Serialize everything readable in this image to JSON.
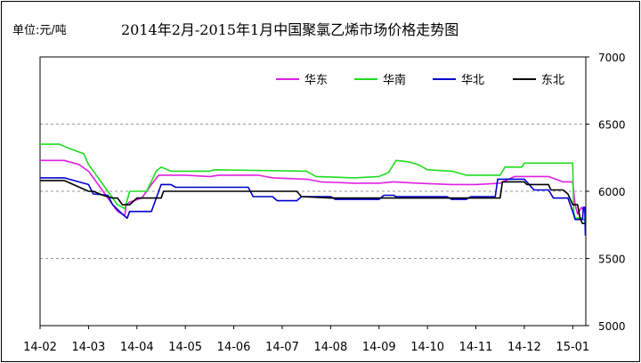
{
  "unit_label": "单位:元/吨",
  "chart_data": {
    "type": "line",
    "title": "2014年2月-2015年1月中国聚氯乙烯市场价格走势图",
    "ylabel_unit": "单位:元/吨",
    "ylim": [
      5000,
      7000
    ],
    "yticks": [
      "7000",
      "6500",
      "6000",
      "5500",
      "5000"
    ],
    "xlim": [
      0,
      11.27
    ],
    "xticks": [
      "14-02",
      "14-03",
      "14-04",
      "14-05",
      "14-06",
      "14-07",
      "14-08",
      "14-09",
      "14-10",
      "14-11",
      "14-12",
      "15-01"
    ],
    "grid": "horizontal-dashed",
    "legend_position": "top-right",
    "series": [
      {
        "name": "华东",
        "color": "#e020e0",
        "points": [
          [
            0,
            6230
          ],
          [
            0.5,
            6230
          ],
          [
            0.8,
            6200
          ],
          [
            1.0,
            6150
          ],
          [
            1.2,
            6050
          ],
          [
            1.4,
            5950
          ],
          [
            1.5,
            5900
          ],
          [
            1.6,
            5850
          ],
          [
            1.75,
            5820
          ],
          [
            1.78,
            5900
          ],
          [
            1.85,
            5920
          ],
          [
            2.1,
            5950
          ],
          [
            2.3,
            6050
          ],
          [
            2.45,
            6120
          ],
          [
            2.8,
            6120
          ],
          [
            3,
            6120
          ],
          [
            3.5,
            6110
          ],
          [
            3.7,
            6120
          ],
          [
            4.5,
            6120
          ],
          [
            4.8,
            6100
          ],
          [
            5.5,
            6090
          ],
          [
            5.8,
            6070
          ],
          [
            6.5,
            6060
          ],
          [
            7,
            6060
          ],
          [
            7.3,
            6070
          ],
          [
            7.8,
            6060
          ],
          [
            8.5,
            6050
          ],
          [
            9,
            6050
          ],
          [
            9.5,
            6060
          ],
          [
            9.8,
            6110
          ],
          [
            10.5,
            6110
          ],
          [
            10.8,
            6070
          ],
          [
            11,
            6070
          ],
          [
            11.05,
            5900
          ],
          [
            11.1,
            5830
          ],
          [
            11.18,
            5880
          ],
          [
            11.25,
            5850
          ]
        ]
      },
      {
        "name": "华南",
        "color": "#20dc20",
        "points": [
          [
            0,
            6350
          ],
          [
            0.4,
            6350
          ],
          [
            0.6,
            6320
          ],
          [
            0.9,
            6280
          ],
          [
            1.0,
            6200
          ],
          [
            1.2,
            6100
          ],
          [
            1.4,
            6000
          ],
          [
            1.5,
            5950
          ],
          [
            1.6,
            5900
          ],
          [
            1.75,
            5870
          ],
          [
            1.85,
            6000
          ],
          [
            2.2,
            6000
          ],
          [
            2.4,
            6150
          ],
          [
            2.5,
            6180
          ],
          [
            2.7,
            6150
          ],
          [
            3.5,
            6150
          ],
          [
            3.6,
            6160
          ],
          [
            5.5,
            6150
          ],
          [
            5.7,
            6110
          ],
          [
            6.5,
            6100
          ],
          [
            7,
            6110
          ],
          [
            7.2,
            6140
          ],
          [
            7.35,
            6230
          ],
          [
            7.6,
            6220
          ],
          [
            7.8,
            6200
          ],
          [
            8,
            6160
          ],
          [
            8.5,
            6150
          ],
          [
            8.8,
            6120
          ],
          [
            9.5,
            6120
          ],
          [
            9.6,
            6180
          ],
          [
            9.95,
            6180
          ],
          [
            10,
            6210
          ],
          [
            11,
            6210
          ],
          [
            11.02,
            5850
          ],
          [
            11.05,
            5800
          ],
          [
            11.2,
            5800
          ],
          [
            11.25,
            5780
          ]
        ]
      },
      {
        "name": "华北",
        "color": "#0000d0",
        "points": [
          [
            0,
            6100
          ],
          [
            0.5,
            6100
          ],
          [
            1,
            6050
          ],
          [
            1.1,
            5980
          ],
          [
            1.4,
            5970
          ],
          [
            1.5,
            5900
          ],
          [
            1.7,
            5830
          ],
          [
            1.8,
            5800
          ],
          [
            1.85,
            5850
          ],
          [
            2.3,
            5850
          ],
          [
            2.45,
            6000
          ],
          [
            2.5,
            6050
          ],
          [
            2.7,
            6050
          ],
          [
            2.8,
            6030
          ],
          [
            4,
            6030
          ],
          [
            4.3,
            6030
          ],
          [
            4.4,
            5960
          ],
          [
            4.8,
            5960
          ],
          [
            4.9,
            5930
          ],
          [
            5.3,
            5930
          ],
          [
            5.4,
            5960
          ],
          [
            6,
            5960
          ],
          [
            6.1,
            5940
          ],
          [
            7,
            5940
          ],
          [
            7.1,
            5970
          ],
          [
            7.3,
            5970
          ],
          [
            7.35,
            5960
          ],
          [
            8.4,
            5960
          ],
          [
            8.5,
            5940
          ],
          [
            8.8,
            5940
          ],
          [
            8.9,
            5960
          ],
          [
            9.4,
            5960
          ],
          [
            9.45,
            6090
          ],
          [
            10,
            6090
          ],
          [
            10.1,
            6050
          ],
          [
            10.2,
            6010
          ],
          [
            10.5,
            6010
          ],
          [
            10.6,
            5950
          ],
          [
            10.9,
            5950
          ],
          [
            11,
            5850
          ],
          [
            11.05,
            5790
          ],
          [
            11.2,
            5790
          ],
          [
            11.22,
            5880
          ],
          [
            11.25,
            5880
          ],
          [
            11.26,
            5670
          ]
        ]
      },
      {
        "name": "东北",
        "color": "#000000",
        "points": [
          [
            0,
            6080
          ],
          [
            0.5,
            6080
          ],
          [
            1,
            6000
          ],
          [
            1.1,
            6000
          ],
          [
            1.3,
            5970
          ],
          [
            1.5,
            5950
          ],
          [
            1.6,
            5950
          ],
          [
            1.7,
            5900
          ],
          [
            1.85,
            5900
          ],
          [
            2.0,
            5950
          ],
          [
            2.5,
            5950
          ],
          [
            2.55,
            6000
          ],
          [
            3.5,
            6000
          ],
          [
            4.5,
            6000
          ],
          [
            5.0,
            6000
          ],
          [
            5.3,
            6000
          ],
          [
            5.4,
            5960
          ],
          [
            6,
            5950
          ],
          [
            9.5,
            5950
          ],
          [
            9.55,
            6070
          ],
          [
            10,
            6070
          ],
          [
            10.05,
            6050
          ],
          [
            10.5,
            6050
          ],
          [
            10.55,
            6010
          ],
          [
            10.8,
            6010
          ],
          [
            10.9,
            5980
          ],
          [
            11.0,
            5900
          ],
          [
            11.1,
            5900
          ],
          [
            11.15,
            5800
          ],
          [
            11.2,
            5760
          ],
          [
            11.25,
            5760
          ]
        ]
      }
    ]
  }
}
